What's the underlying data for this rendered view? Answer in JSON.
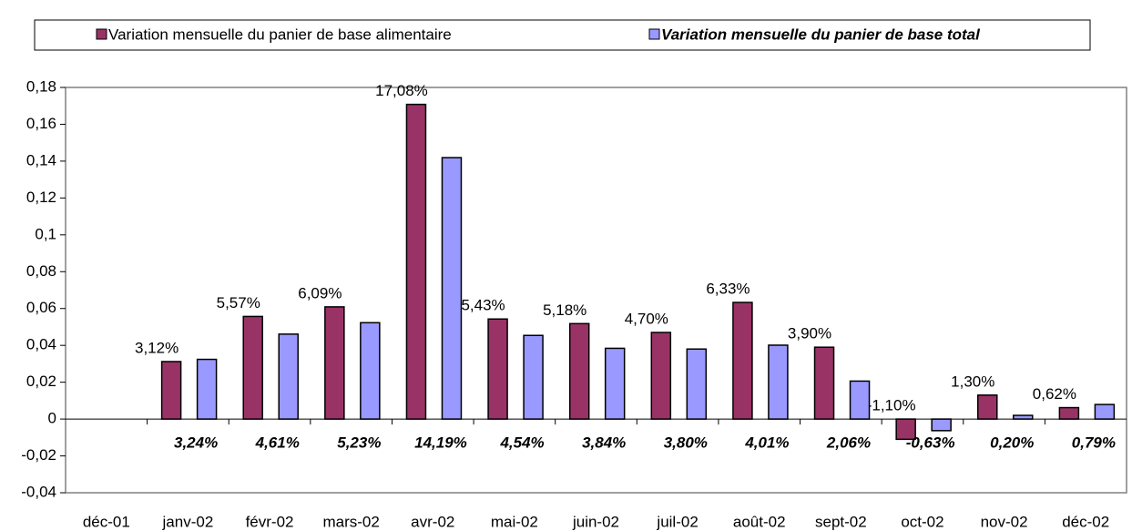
{
  "chart_data": {
    "type": "bar",
    "categories": [
      "déc-01",
      "janv-02",
      "févr-02",
      "mars-02",
      "avr-02",
      "mai-02",
      "juin-02",
      "juil-02",
      "août-02",
      "sept-02",
      "oct-02",
      "nov-02",
      "déc-02"
    ],
    "series": [
      {
        "name": "Variation mensuelle du panier de base alimentaire",
        "color": "#993366",
        "values": [
          null,
          0.0312,
          0.0557,
          0.0609,
          0.1708,
          0.0543,
          0.0518,
          0.047,
          0.0633,
          0.039,
          -0.011,
          0.013,
          0.0062
        ],
        "value_labels": [
          null,
          "3,12%",
          "5,57%",
          "6,09%",
          "17,08%",
          "5,43%",
          "5,18%",
          "4,70%",
          "6,33%",
          "3,90%",
          "-1,10%",
          "1,30%",
          "0,62%"
        ]
      },
      {
        "name": "Variation mensuelle du panier de base total",
        "color": "#9999ff",
        "values": [
          null,
          0.0324,
          0.0461,
          0.0523,
          0.1419,
          0.0454,
          0.0384,
          0.038,
          0.0401,
          0.0206,
          -0.0063,
          0.002,
          0.0079
        ],
        "value_labels": [
          null,
          "3,24%",
          "4,61%",
          "5,23%",
          "14,19%",
          "4,54%",
          "3,84%",
          "3,80%",
          "4,01%",
          "2,06%",
          "-0,63%",
          "0,20%",
          "0,79%"
        ]
      }
    ],
    "ylim": [
      -0.04,
      0.18
    ],
    "yticks": [
      {
        "value": -0.04,
        "label": "-0,04"
      },
      {
        "value": -0.02,
        "label": "-0,02"
      },
      0,
      {
        "value": 0.02,
        "label": "0,02"
      },
      {
        "value": 0.04,
        "label": "0,04"
      },
      {
        "value": 0.06,
        "label": "0,06"
      },
      {
        "value": 0.08,
        "label": "0,08"
      },
      {
        "value": 0.1,
        "label": "0,1"
      },
      {
        "value": 0.12,
        "label": "0,12"
      },
      {
        "value": 0.14,
        "label": "0,14"
      },
      {
        "value": 0.16,
        "label": "0,16"
      },
      {
        "value": 0.18,
        "label": "0,18"
      }
    ],
    "grid": false,
    "legend": "top"
  }
}
